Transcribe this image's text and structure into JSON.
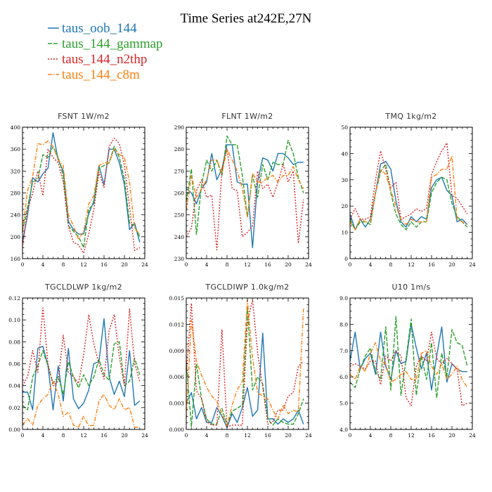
{
  "title": "Time Series at242E,27N",
  "legend": [
    {
      "label": "taus_oob_144",
      "color": "#1f77b4",
      "dash": "solid"
    },
    {
      "label": "taus_144_gammap",
      "color": "#2ca02c",
      "dash": "longdash"
    },
    {
      "label": "taus_144_n2thp",
      "color": "#d62728",
      "dash": "dotted"
    },
    {
      "label": "taus_144_c8m",
      "color": "#ff7f0e",
      "dash": "dashdot"
    }
  ],
  "chart_data": [
    {
      "type": "line",
      "title": "FSNT   1W/m2",
      "xlim": [
        0,
        24
      ],
      "ylim": [
        160,
        400
      ],
      "xticks": [
        "0",
        "4",
        "8",
        "12",
        "16",
        "20",
        "24"
      ],
      "yticks": [
        "160",
        "200",
        "240",
        "280",
        "320",
        "360",
        "400"
      ],
      "x": [
        0,
        1,
        2,
        3,
        4,
        5,
        6,
        7,
        8,
        9,
        10,
        11,
        12,
        13,
        14,
        15,
        16,
        17,
        18,
        19,
        20,
        21,
        22,
        23
      ],
      "series": [
        {
          "name": "taus_oob_144",
          "values": [
            190,
            240,
            308,
            300,
            315,
            325,
            390,
            340,
            320,
            228,
            213,
            205,
            205,
            242,
            265,
            330,
            295,
            360,
            360,
            335,
            295,
            213,
            225,
            190
          ]
        },
        {
          "name": "taus_144_gammap",
          "values": [
            210,
            255,
            300,
            305,
            350,
            345,
            365,
            345,
            312,
            220,
            210,
            200,
            180,
            250,
            260,
            325,
            330,
            335,
            365,
            345,
            305,
            225,
            220,
            200
          ]
        },
        {
          "name": "taus_144_n2thp",
          "values": [
            180,
            250,
            280,
            320,
            275,
            360,
            345,
            335,
            300,
            220,
            190,
            185,
            170,
            205,
            250,
            318,
            290,
            365,
            380,
            370,
            330,
            255,
            175,
            180
          ]
        },
        {
          "name": "taus_144_c8m",
          "values": [
            210,
            285,
            310,
            370,
            368,
            375,
            365,
            340,
            330,
            240,
            220,
            195,
            210,
            260,
            275,
            330,
            335,
            335,
            360,
            350,
            345,
            300,
            215,
            205
          ]
        }
      ]
    },
    {
      "type": "line",
      "title": "FLNT   1W/m2",
      "xlim": [
        0,
        24
      ],
      "ylim": [
        230,
        290
      ],
      "xticks": [
        "0",
        "4",
        "8",
        "12",
        "16",
        "20",
        "24"
      ],
      "yticks": [
        "230",
        "240",
        "250",
        "260",
        "270",
        "280",
        "290"
      ],
      "x": [
        0,
        1,
        2,
        3,
        4,
        5,
        6,
        7,
        8,
        9,
        10,
        11,
        12,
        13,
        14,
        15,
        16,
        17,
        18,
        19,
        20,
        21,
        22,
        23
      ],
      "series": [
        {
          "name": "taus_oob_144",
          "values": [
            262,
            260,
            255,
            262,
            265,
            278,
            266,
            271,
            282,
            282,
            265,
            264,
            264,
            235,
            265,
            276,
            275,
            270,
            278,
            278,
            276,
            273,
            274,
            274
          ]
        },
        {
          "name": "taus_144_gammap",
          "values": [
            256,
            271,
            241,
            264,
            275,
            270,
            275,
            268,
            286,
            282,
            282,
            268,
            249,
            268,
            258,
            273,
            266,
            274,
            273,
            273,
            284,
            278,
            267,
            260
          ]
        },
        {
          "name": "taus_144_n2thp",
          "values": [
            240,
            244,
            261,
            266,
            258,
            259,
            234,
            271,
            280,
            262,
            261,
            240,
            242,
            245,
            270,
            262,
            264,
            258,
            265,
            273,
            265,
            270,
            237,
            257
          ]
        },
        {
          "name": "taus_144_c8m",
          "values": [
            252,
            268,
            258,
            262,
            266,
            275,
            275,
            269,
            280,
            275,
            270,
            262,
            249,
            269,
            265,
            265,
            267,
            268,
            265,
            268,
            268,
            272,
            266,
            262
          ]
        }
      ]
    },
    {
      "type": "line",
      "title": "TMQ   1kg/m2",
      "xlim": [
        0,
        24
      ],
      "ylim": [
        0,
        50
      ],
      "xticks": [
        "0",
        "4",
        "8",
        "12",
        "16",
        "20",
        "24"
      ],
      "yticks": [
        "0",
        "10",
        "20",
        "30",
        "40",
        "50"
      ],
      "x": [
        0,
        1,
        2,
        3,
        4,
        5,
        6,
        7,
        8,
        9,
        10,
        11,
        12,
        13,
        14,
        15,
        16,
        17,
        18,
        19,
        20,
        21,
        22,
        23
      ],
      "series": [
        {
          "name": "taus_oob_144",
          "values": [
            17,
            11,
            15,
            12,
            15,
            25,
            36,
            37,
            34,
            22,
            14,
            12,
            16,
            14,
            16,
            15,
            27,
            30,
            31,
            26,
            24,
            14,
            15,
            13
          ]
        },
        {
          "name": "taus_144_gammap",
          "values": [
            15,
            11,
            14,
            14,
            13,
            25,
            33,
            36,
            25,
            17,
            13,
            11,
            14,
            12,
            14,
            14,
            25,
            29,
            31,
            30,
            21,
            16,
            14,
            12
          ]
        },
        {
          "name": "taus_144_n2thp",
          "values": [
            15,
            19,
            15,
            15,
            16,
            30,
            41,
            34,
            27,
            29,
            15,
            16,
            17,
            19,
            18,
            19,
            32,
            37,
            41,
            44,
            24,
            23,
            20,
            17
          ]
        },
        {
          "name": "taus_144_c8m",
          "values": [
            14,
            11,
            15,
            14,
            14,
            25,
            34,
            32,
            26,
            20,
            15,
            13,
            15,
            14,
            14,
            14,
            31,
            32,
            34,
            34,
            39,
            15,
            14,
            13
          ]
        }
      ]
    },
    {
      "type": "line",
      "title": "TGCLDLWP   1kg/m2",
      "xlim": [
        0,
        24
      ],
      "ylim": [
        0,
        0.12
      ],
      "xticks": [
        "0",
        "4",
        "8",
        "12",
        "16",
        "20",
        "24"
      ],
      "yticks": [
        "0.00",
        "0.02",
        "0.04",
        "0.06",
        "0.08",
        "0.10",
        "0.12"
      ],
      "x": [
        0,
        1,
        2,
        3,
        4,
        5,
        6,
        7,
        8,
        9,
        10,
        11,
        12,
        13,
        14,
        15,
        16,
        17,
        18,
        19,
        20,
        21,
        22,
        23
      ],
      "series": [
        {
          "name": "taus_oob_144",
          "values": [
            0.034,
            0.034,
            0.018,
            0.074,
            0.076,
            0.058,
            0.018,
            0.058,
            0.026,
            0.074,
            0.028,
            0.019,
            0.024,
            0.036,
            0.06,
            0.062,
            0.101,
            0.048,
            0.032,
            0.044,
            0.03,
            0.072,
            0.022,
            0.026
          ]
        },
        {
          "name": "taus_144_gammap",
          "values": [
            0.022,
            0.018,
            0.048,
            0.058,
            0.072,
            0.058,
            0.042,
            0.048,
            0.032,
            0.062,
            0.048,
            0.038,
            0.05,
            0.04,
            0.048,
            0.064,
            0.05,
            0.045,
            0.078,
            0.08,
            0.04,
            0.044,
            0.065,
            0.05
          ]
        },
        {
          "name": "taus_144_n2thp",
          "values": [
            0.04,
            0.048,
            0.072,
            0.052,
            0.111,
            0.06,
            0.04,
            0.044,
            0.086,
            0.052,
            0.048,
            0.042,
            0.068,
            0.105,
            0.078,
            0.06,
            0.046,
            0.09,
            0.105,
            0.066,
            0.04,
            0.11,
            0.06,
            0.044
          ]
        },
        {
          "name": "taus_144_c8m",
          "values": [
            0.004,
            0.01,
            0.004,
            0.022,
            0.028,
            0.032,
            0.044,
            0.032,
            0.012,
            0.016,
            0.004,
            0.002,
            0.012,
            0.003,
            0.004,
            0.026,
            0.032,
            0.022,
            0.018,
            0.028,
            0.018,
            0.02,
            0.002,
            0.002
          ]
        }
      ]
    },
    {
      "type": "line",
      "title": "TGCLDIWP   1.0kg/m2",
      "xlim": [
        0,
        24
      ],
      "ylim": [
        0,
        0.015
      ],
      "xticks": [
        "0",
        "4",
        "8",
        "12",
        "16",
        "20",
        "24"
      ],
      "yticks": [
        "0.000",
        "0.003",
        "0.006",
        "0.009",
        "0.012",
        "0.015"
      ],
      "x": [
        0,
        1,
        2,
        3,
        4,
        5,
        6,
        7,
        8,
        9,
        10,
        11,
        12,
        13,
        14,
        15,
        16,
        17,
        18,
        19,
        20,
        21,
        22,
        23
      ],
      "series": [
        {
          "name": "taus_oob_144",
          "values": [
            0.003,
            0.0042,
            0.0012,
            0.0025,
            0.0008,
            0.0008,
            0.0025,
            0.0015,
            0.0002,
            0.0018,
            0.0008,
            0.0025,
            0.0048,
            0.0015,
            0.0022,
            0.011,
            0.0012,
            0.0012,
            0.0006,
            0.0012,
            0.0008,
            0.0012,
            0.0022,
            0.0006
          ]
        },
        {
          "name": "taus_144_gammap",
          "values": [
            0.0078,
            0.0003,
            0.0075,
            0.0035,
            0.0012,
            0.0006,
            0.0006,
            0.0024,
            0.0005,
            0.0021,
            0.0024,
            0.0028,
            0.014,
            0.0045,
            0.006,
            0.0052,
            0.0012,
            0.0005,
            0.0012,
            0.0008,
            0.0006,
            0.0006,
            0.0018,
            0.0035
          ]
        },
        {
          "name": "taus_144_n2thp",
          "values": [
            0.0062,
            0.0144,
            0.0044,
            0.0035,
            0.0009,
            0.0005,
            0.0005,
            0.0114,
            0.0003,
            0.0005,
            0.0005,
            0.0005,
            0.0122,
            0.0148,
            0.0088,
            0.0048,
            0.0006,
            0.0009,
            0.0022,
            0.0022,
            0.0038,
            0.0042,
            0.0072,
            0.0078
          ]
        },
        {
          "name": "taus_144_c8m",
          "values": [
            0.0012,
            0.0125,
            0.0078,
            0.0062,
            0.0048,
            0.0038,
            0.0032,
            0.0018,
            0.0004,
            0.0028,
            0.0045,
            0.0055,
            0.0148,
            0.0082,
            0.0042,
            0.0038,
            0.0035,
            0.0022,
            0.0012,
            0.0028,
            0.0018,
            0.0022,
            0.002,
            0.0138
          ]
        }
      ]
    },
    {
      "type": "line",
      "title": "U10   1m/s",
      "xlim": [
        0,
        24
      ],
      "ylim": [
        4.0,
        9.0
      ],
      "xticks": [
        "0",
        "4",
        "8",
        "12",
        "16",
        "20",
        "24"
      ],
      "yticks": [
        "4.0",
        "5.0",
        "6.0",
        "7.0",
        "8.0",
        "9.0"
      ],
      "x": [
        0,
        1,
        2,
        3,
        4,
        5,
        6,
        7,
        8,
        9,
        10,
        11,
        12,
        13,
        14,
        15,
        16,
        17,
        18,
        19,
        20,
        21,
        22,
        23
      ],
      "series": [
        {
          "name": "taus_oob_144",
          "values": [
            6.6,
            7.7,
            6.3,
            6.7,
            6.9,
            6.1,
            7.7,
            6.4,
            5.9,
            7.0,
            6.5,
            6.6,
            8.0,
            7.1,
            6.3,
            6.9,
            5.5,
            6.8,
            7.9,
            5.8,
            6.5,
            6.3,
            6.2,
            6.2
          ]
        },
        {
          "name": "taus_144_gammap",
          "values": [
            5.8,
            5.6,
            6.3,
            6.8,
            7.1,
            6.2,
            5.9,
            7.9,
            5.5,
            8.3,
            5.3,
            6.7,
            8.2,
            5.3,
            6.8,
            5.9,
            7.3,
            5.2,
            6.9,
            6.0,
            7.8,
            7.3,
            7.2,
            6.4
          ]
        },
        {
          "name": "taus_144_n2thp",
          "values": [
            6.4,
            6.5,
            6.4,
            6.3,
            6.6,
            6.6,
            5.7,
            6.8,
            6.6,
            7.0,
            6.8,
            5.2,
            4.9,
            6.4,
            6.8,
            6.6,
            7.7,
            6.7,
            6.5,
            6.7,
            6.5,
            6.3,
            4.9,
            5.0
          ]
        },
        {
          "name": "taus_144_c8m",
          "values": [
            6.1,
            5.9,
            6.4,
            6.2,
            6.9,
            7.3,
            6.6,
            6.5,
            5.8,
            5.9,
            6.1,
            6.2,
            5.9,
            5.9,
            6.9,
            7.0,
            6.4,
            6.1,
            6.5,
            5.9,
            6.1,
            6.4,
            5.9,
            5.6
          ]
        }
      ]
    }
  ]
}
